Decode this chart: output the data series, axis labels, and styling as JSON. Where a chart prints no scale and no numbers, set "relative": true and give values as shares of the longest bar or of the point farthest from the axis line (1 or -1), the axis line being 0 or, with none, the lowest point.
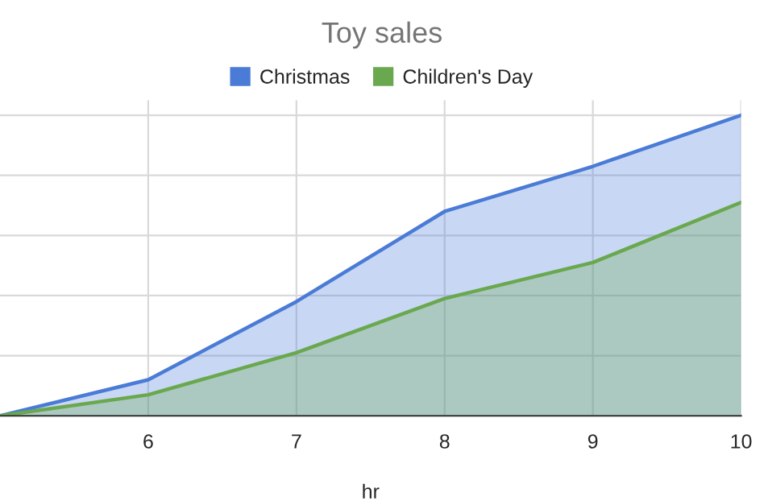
{
  "chart_data": {
    "type": "area",
    "title": "Toy sales",
    "xlabel": "hr",
    "relative": true,
    "x": [
      5,
      6,
      7,
      8,
      9,
      10
    ],
    "xlim": [
      5,
      10
    ],
    "xticks": [
      6,
      7,
      8,
      9,
      10
    ],
    "series": [
      {
        "name": "Christmas",
        "color": "#4a7bd6",
        "values": [
          0,
          0.12,
          0.38,
          0.68,
          0.83,
          1
        ]
      },
      {
        "name": "Children's Day",
        "color": "#6aa84f",
        "values": [
          0,
          0.07,
          0.21,
          0.39,
          0.51,
          0.71
        ]
      }
    ],
    "grid": true,
    "legend": "top"
  }
}
